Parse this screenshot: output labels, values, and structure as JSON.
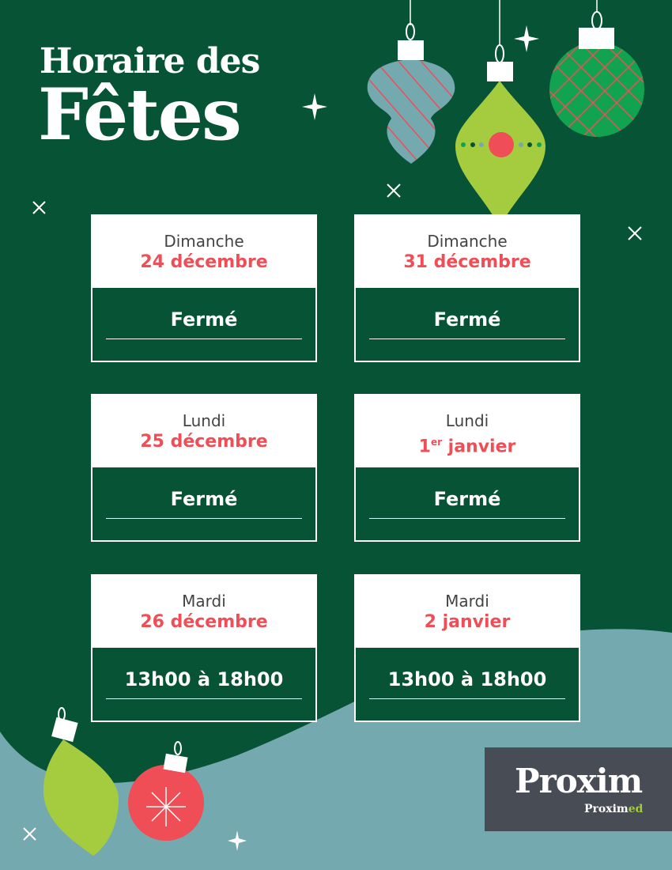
{
  "title": {
    "line1": "Horaire des",
    "line2": "Fêtes"
  },
  "schedule": [
    {
      "day": "Dimanche",
      "date": "24 décembre",
      "sup": "",
      "hours": "Fermé"
    },
    {
      "day": "Dimanche",
      "date": "31 décembre",
      "sup": "",
      "hours": "Fermé"
    },
    {
      "day": "Lundi",
      "date": "25 décembre",
      "sup": "",
      "hours": "Fermé"
    },
    {
      "day": "Lundi",
      "date_pre": "1",
      "sup": "er",
      "date": " janvier",
      "hours": "Fermé"
    },
    {
      "day": "Mardi",
      "date": "26 décembre",
      "sup": "",
      "hours": "13h00 à 18h00"
    },
    {
      "day": "Mardi",
      "date": "2 janvier",
      "sup": "",
      "hours": "13h00 à 18h00"
    }
  ],
  "logo": {
    "main": "Proxim",
    "sub_a": "Pro",
    "sub_b": "xim",
    "sub_c": "ed"
  },
  "colors": {
    "background": "#065336",
    "accent_red": "#ef4e56",
    "lime": "#a5cc3e",
    "teal": "#75a9b0",
    "logo_bg": "#474c55"
  }
}
